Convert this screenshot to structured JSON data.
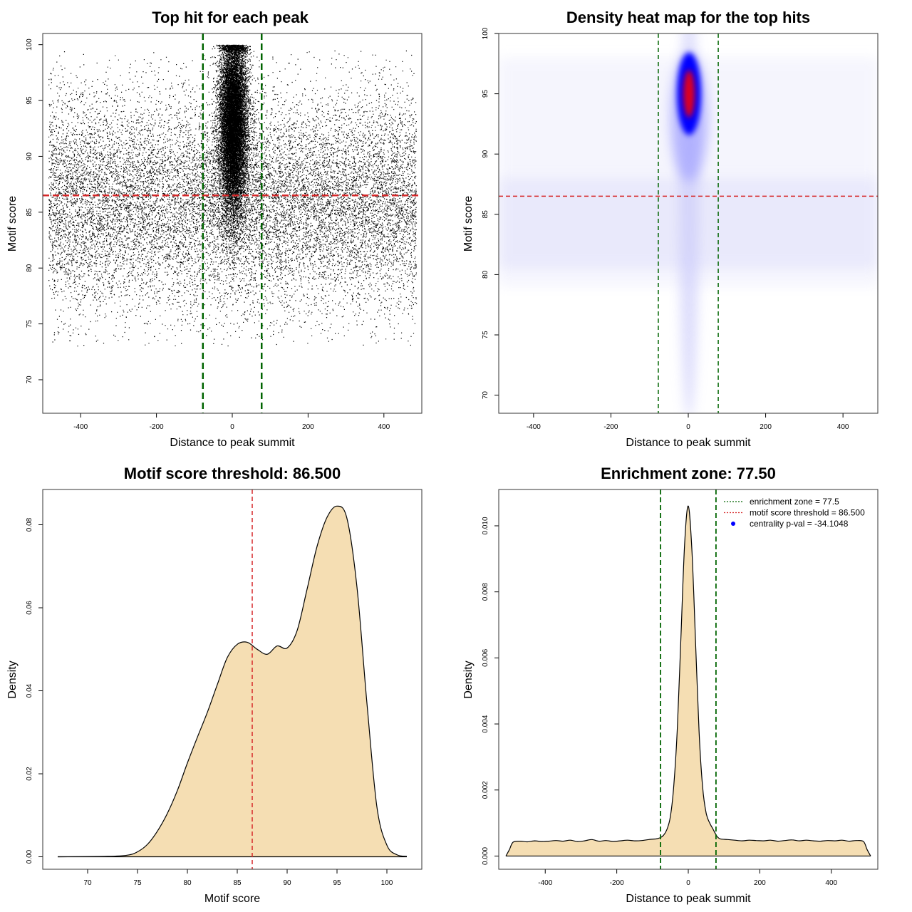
{
  "chart_data": [
    {
      "type": "scatter",
      "title": "Top hit for each peak",
      "xlabel": "Distance to peak summit",
      "ylabel": "Motif score",
      "xlim": [
        -500,
        500
      ],
      "ylim": [
        67,
        101
      ],
      "xticks": [
        -400,
        -200,
        0,
        200,
        400
      ],
      "yticks": [
        70,
        75,
        80,
        85,
        90,
        95,
        100
      ],
      "series": [
        {
          "role": "background",
          "x_range": [
            -485,
            485
          ],
          "y_center": 86,
          "y_sd": 5,
          "y_range": [
            73,
            99.5
          ],
          "approx_count": 15000
        },
        {
          "role": "central-cluster",
          "x_center": 2,
          "x_sd": 18,
          "y_center": 93,
          "y_sd": 4,
          "y_range": [
            80,
            100
          ],
          "approx_count": 14000
        }
      ],
      "vlines": [
        -77.5,
        77.5
      ],
      "hline": 86.5,
      "colors": {
        "points": "#000000",
        "vlines": "#006400",
        "hline": "#d62728"
      }
    },
    {
      "type": "heatmap",
      "title": "Density heat map for the top hits",
      "xlabel": "Distance to peak summit",
      "ylabel": "Motif score",
      "xlim": [
        -490,
        490
      ],
      "ylim": [
        68.5,
        100
      ],
      "xticks": [
        -400,
        -200,
        0,
        200,
        400
      ],
      "yticks": [
        70,
        75,
        80,
        85,
        90,
        95,
        100
      ],
      "peak": {
        "x": 2,
        "y": 95
      },
      "color_scale": [
        "#ffffff",
        "#0000ff",
        "#ff0000"
      ],
      "vlines": [
        -77.5,
        77.5
      ],
      "hline": 86.5,
      "colors": {
        "vlines": "#006400",
        "hline": "#d62728"
      }
    },
    {
      "type": "area",
      "title": "Motif score threshold: 86.500",
      "xlabel": "Motif score",
      "ylabel": "Density",
      "xlim": [
        65.5,
        103.5
      ],
      "ylim": [
        -0.003,
        0.0885
      ],
      "xticks": [
        70,
        75,
        80,
        85,
        90,
        95,
        100
      ],
      "yticks": [
        0.0,
        0.02,
        0.04,
        0.06,
        0.08
      ],
      "ytick_labels": [
        "0.00",
        "0.02",
        "0.04",
        "0.06",
        "0.08"
      ],
      "x": [
        67,
        72,
        74,
        75,
        76,
        77,
        78,
        79,
        80,
        81,
        82,
        83,
        84,
        85,
        86,
        87,
        88,
        89,
        90,
        91,
        92,
        93,
        94,
        95,
        96,
        97,
        98,
        99,
        100,
        101,
        102
      ],
      "y": [
        0.0,
        0.0001,
        0.0004,
        0.0012,
        0.003,
        0.0062,
        0.0105,
        0.016,
        0.0226,
        0.0288,
        0.0348,
        0.0415,
        0.048,
        0.0512,
        0.0517,
        0.05,
        0.0488,
        0.0508,
        0.0503,
        0.0545,
        0.0645,
        0.0748,
        0.0818,
        0.0845,
        0.0815,
        0.065,
        0.037,
        0.012,
        0.0028,
        0.0005,
        0.0001
      ],
      "vline": 86.5,
      "colors": {
        "fill": "#f5deb3",
        "line": "#000000",
        "vline": "#d62728"
      }
    },
    {
      "type": "area",
      "title": "Enrichment zone: 77.50",
      "xlabel": "Distance to peak summit",
      "ylabel": "Density",
      "xlim": [
        -530,
        530
      ],
      "ylim": [
        -0.0004,
        0.0111
      ],
      "xticks": [
        -400,
        -200,
        0,
        200,
        400
      ],
      "yticks": [
        0.0,
        0.002,
        0.004,
        0.006,
        0.008,
        0.01
      ],
      "ytick_labels": [
        "0.000",
        "0.002",
        "0.004",
        "0.006",
        "0.008",
        "0.010"
      ],
      "x": [
        -510,
        -500,
        -490,
        -470,
        -450,
        -430,
        -410,
        -390,
        -370,
        -350,
        -330,
        -310,
        -290,
        -270,
        -250,
        -230,
        -210,
        -190,
        -170,
        -150,
        -130,
        -110,
        -90,
        -80,
        -70,
        -60,
        -50,
        -40,
        -30,
        -20,
        -10,
        0,
        10,
        20,
        30,
        40,
        50,
        60,
        70,
        80,
        90,
        110,
        130,
        150,
        170,
        190,
        210,
        230,
        250,
        270,
        290,
        310,
        330,
        350,
        370,
        390,
        410,
        430,
        450,
        470,
        490,
        500,
        510
      ],
      "y": [
        0.0,
        0.0002,
        0.00042,
        0.00045,
        0.00043,
        0.00046,
        0.00044,
        0.00045,
        0.00047,
        0.00045,
        0.00048,
        0.00044,
        0.00046,
        0.0005,
        0.00045,
        0.00047,
        0.00044,
        0.00046,
        0.00048,
        0.00046,
        0.00047,
        0.0005,
        0.00052,
        0.00055,
        0.00062,
        0.0008,
        0.0012,
        0.0022,
        0.004,
        0.0068,
        0.0095,
        0.0106,
        0.0093,
        0.0066,
        0.0038,
        0.0021,
        0.0013,
        0.001,
        0.0008,
        0.0006,
        0.00052,
        0.0005,
        0.00048,
        0.00046,
        0.00048,
        0.00047,
        0.00046,
        0.00048,
        0.00045,
        0.00047,
        0.00049,
        0.00046,
        0.00048,
        0.00046,
        0.00045,
        0.00047,
        0.00046,
        0.00048,
        0.00045,
        0.00047,
        0.00044,
        0.0002,
        0.0
      ],
      "vlines": [
        -77.5,
        77.5
      ],
      "legend": {
        "placement": "top-right",
        "items": [
          {
            "label": "enrichment zone = 77.5",
            "style": "dotted",
            "color": "#006400"
          },
          {
            "label": "motif score threshold = 86.500",
            "style": "dotted",
            "color": "#d62728"
          },
          {
            "label": "centrality p-val = -34.1048",
            "style": "point",
            "color": "#0000ff"
          }
        ]
      },
      "colors": {
        "fill": "#f5deb3",
        "line": "#000000",
        "vlines": "#006400"
      }
    }
  ]
}
